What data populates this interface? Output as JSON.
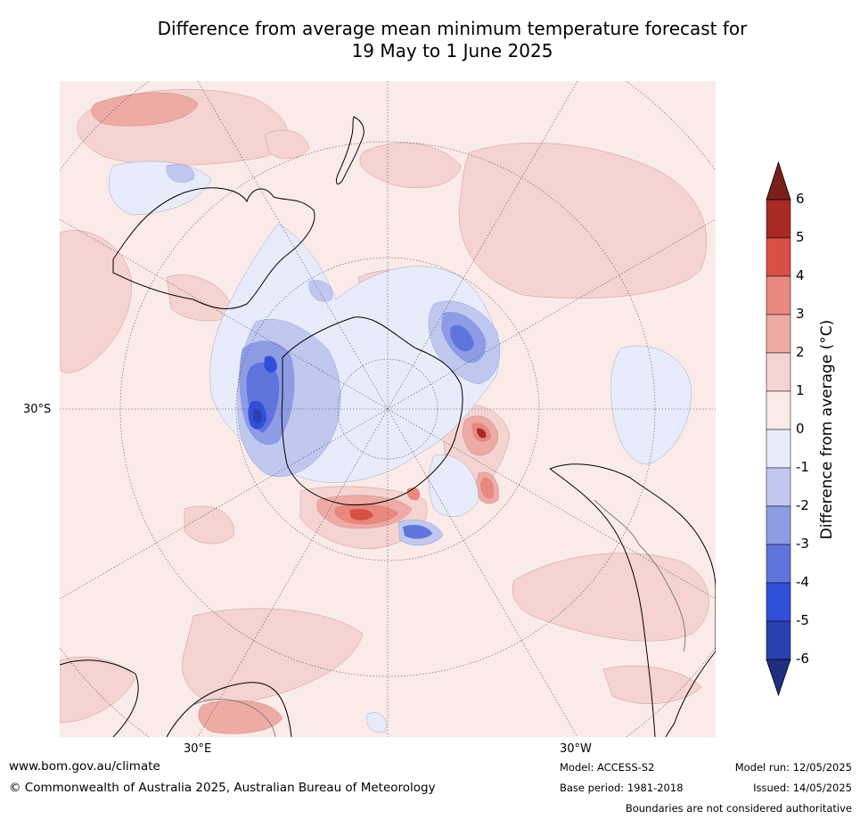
{
  "title": {
    "line1": "Difference from average mean minimum temperature forecast for",
    "line2": "19 May to 1 June 2025"
  },
  "map": {
    "projection": "south-polar-stereographic",
    "lat_labels": [
      {
        "text": "30°S"
      }
    ],
    "lon_labels": [
      {
        "text": "30°E"
      },
      {
        "text": "30°W"
      }
    ],
    "colors": {
      "ocean_base": "#fbebe8",
      "coastline": "#000000",
      "borders": "#808080",
      "graticule": "#555555"
    }
  },
  "colorbar": {
    "label": "Difference from average (°C)",
    "levels": [
      "6",
      "5",
      "4",
      "3",
      "2",
      "1",
      "0",
      "-1",
      "-2",
      "-3",
      "-4",
      "-5",
      "-6"
    ],
    "bins": [
      {
        "range": [
          5,
          6
        ],
        "color": "#a82a22"
      },
      {
        "range": [
          4,
          5
        ],
        "color": "#d94f43"
      },
      {
        "range": [
          3,
          4
        ],
        "color": "#e8887f"
      },
      {
        "range": [
          2,
          3
        ],
        "color": "#eeaba5"
      },
      {
        "range": [
          1,
          2
        ],
        "color": "#f5d3d0"
      },
      {
        "range": [
          0,
          1
        ],
        "color": "#fbebe8"
      },
      {
        "range": [
          -1,
          0
        ],
        "color": "#e8ebf9"
      },
      {
        "range": [
          -2,
          -1
        ],
        "color": "#c0c8f0"
      },
      {
        "range": [
          -3,
          -2
        ],
        "color": "#8e9ce6"
      },
      {
        "range": [
          -4,
          -3
        ],
        "color": "#6074de"
      },
      {
        "range": [
          -5,
          -4
        ],
        "color": "#3050dc"
      },
      {
        "range": [
          -6,
          -5
        ],
        "color": "#2840b0"
      }
    ],
    "extend_max_color": "#7a1f1a",
    "extend_min_color": "#1f2f80"
  },
  "footer": {
    "website": "www.bom.gov.au/climate",
    "copyright": "© Commonwealth of Australia 2025, Australian Bureau of Meteorology",
    "model": "Model: ACCESS-S2",
    "base_period": "Base period: 1981-2018",
    "model_run": "Model run: 12/05/2025",
    "issued": "Issued: 14/05/2025",
    "disclaimer": "Boundaries are not considered authoritative"
  }
}
